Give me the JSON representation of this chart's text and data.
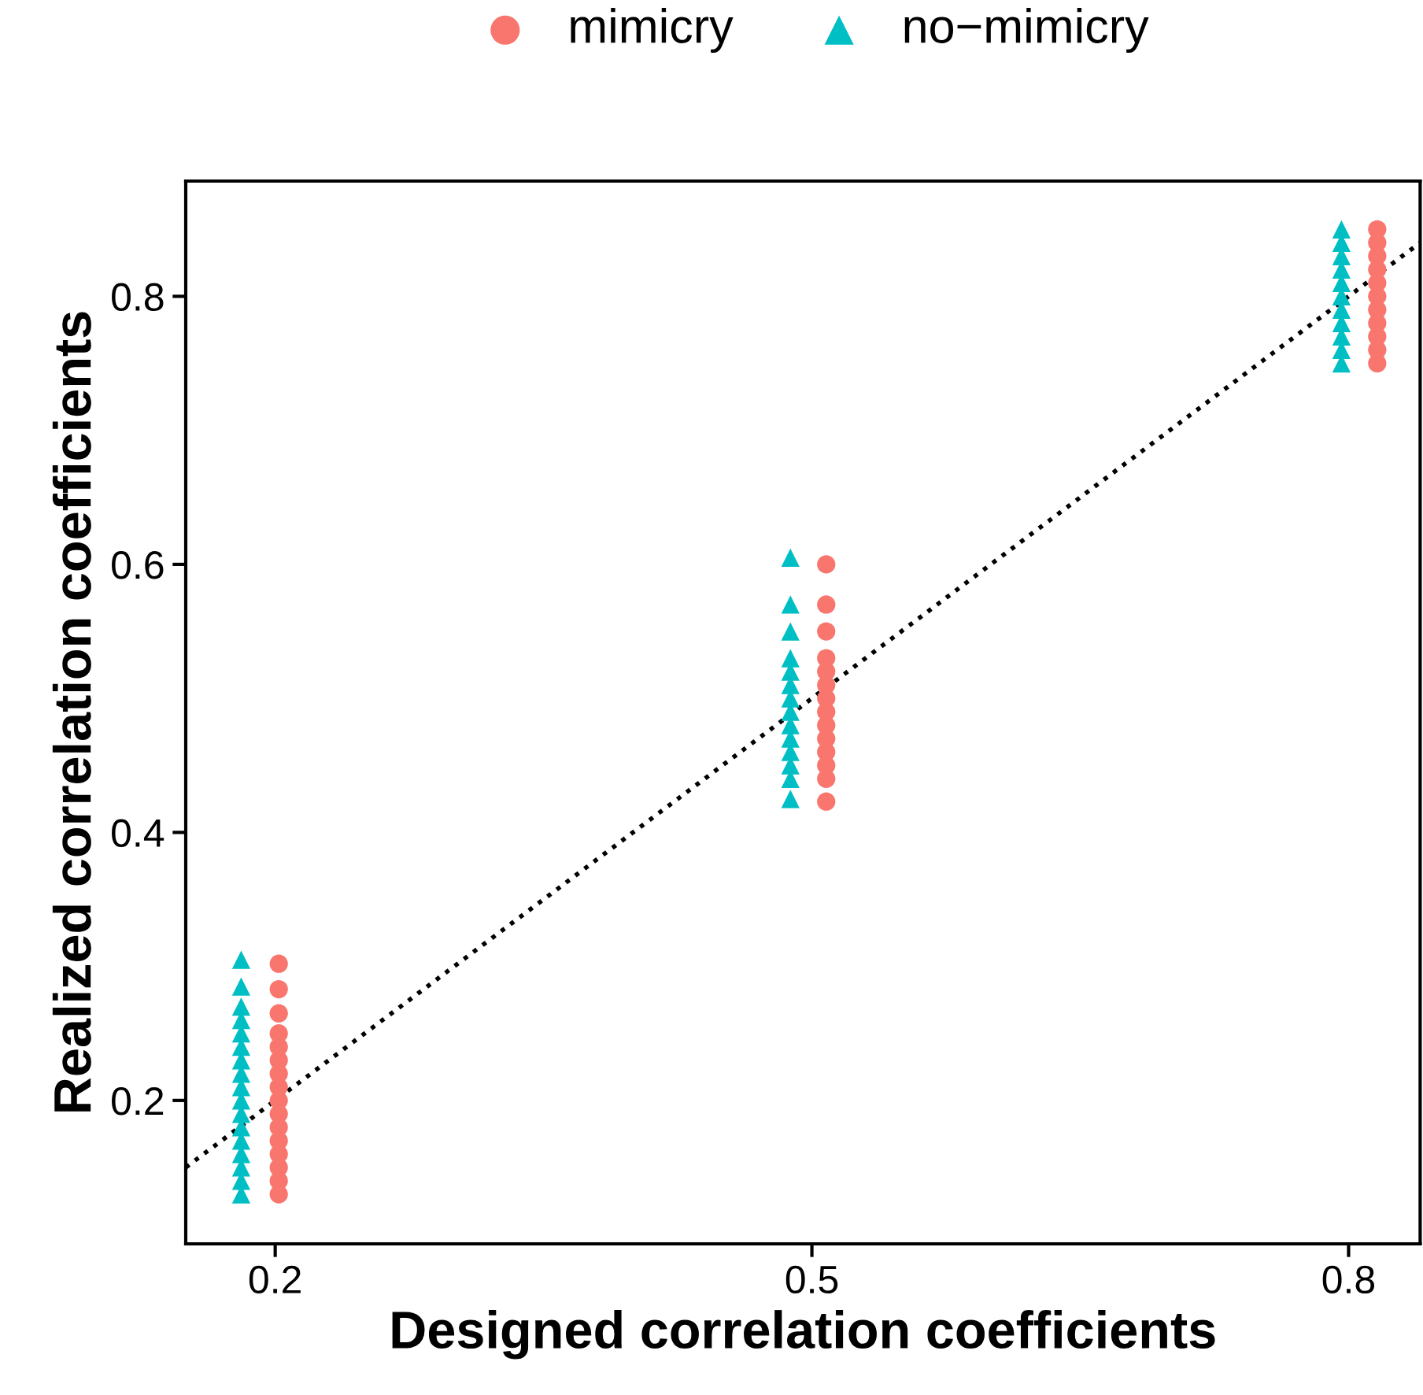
{
  "chart_data": {
    "type": "scatter",
    "xlabel": "Designed correlation coefficients",
    "ylabel": "Realized correlation coefficients",
    "xlim": [
      0.15,
      0.84
    ],
    "ylim": [
      0.093,
      0.886
    ],
    "xticks": [
      0.2,
      0.5,
      0.8
    ],
    "yticks": [
      0.2,
      0.4,
      0.6,
      0.8
    ],
    "grid": false,
    "legend": "top",
    "series": [
      {
        "name": "mimicry",
        "color": "#f8766d",
        "marker": "circle",
        "x": [
          0.202,
          0.202,
          0.202,
          0.202,
          0.202,
          0.202,
          0.202,
          0.202,
          0.202,
          0.202,
          0.202,
          0.202,
          0.202,
          0.202,
          0.202,
          0.202,
          0.508,
          0.508,
          0.508,
          0.508,
          0.508,
          0.508,
          0.508,
          0.508,
          0.508,
          0.508,
          0.508,
          0.508,
          0.508,
          0.508,
          0.816,
          0.816,
          0.816,
          0.816,
          0.816,
          0.816,
          0.816,
          0.816,
          0.816,
          0.816,
          0.816
        ],
        "values": [
          0.13,
          0.14,
          0.15,
          0.16,
          0.17,
          0.18,
          0.19,
          0.2,
          0.21,
          0.22,
          0.23,
          0.24,
          0.25,
          0.265,
          0.283,
          0.302,
          0.423,
          0.44,
          0.45,
          0.46,
          0.47,
          0.48,
          0.49,
          0.5,
          0.51,
          0.52,
          0.53,
          0.55,
          0.57,
          0.6,
          0.75,
          0.76,
          0.77,
          0.78,
          0.79,
          0.8,
          0.81,
          0.82,
          0.83,
          0.84,
          0.85
        ]
      },
      {
        "name": "no−mimicry",
        "color": "#00bfc4",
        "marker": "triangle",
        "x": [
          0.181,
          0.181,
          0.181,
          0.181,
          0.181,
          0.181,
          0.181,
          0.181,
          0.181,
          0.181,
          0.181,
          0.181,
          0.181,
          0.181,
          0.181,
          0.181,
          0.181,
          0.488,
          0.488,
          0.488,
          0.488,
          0.488,
          0.488,
          0.488,
          0.488,
          0.488,
          0.488,
          0.488,
          0.488,
          0.488,
          0.488,
          0.796,
          0.796,
          0.796,
          0.796,
          0.796,
          0.796,
          0.796,
          0.796,
          0.796,
          0.796,
          0.796
        ],
        "values": [
          0.13,
          0.14,
          0.15,
          0.16,
          0.17,
          0.18,
          0.19,
          0.2,
          0.21,
          0.22,
          0.23,
          0.24,
          0.25,
          0.26,
          0.27,
          0.285,
          0.305,
          0.425,
          0.44,
          0.45,
          0.46,
          0.47,
          0.48,
          0.49,
          0.5,
          0.51,
          0.52,
          0.53,
          0.55,
          0.57,
          0.605,
          0.75,
          0.76,
          0.77,
          0.78,
          0.79,
          0.8,
          0.81,
          0.82,
          0.83,
          0.84,
          0.85
        ]
      },
      {
        "type": "line",
        "color": "#000000",
        "line_style": "dotted",
        "marker": "none",
        "x": [
          0.15,
          0.84
        ],
        "values": [
          0.15,
          0.84
        ]
      }
    ]
  }
}
